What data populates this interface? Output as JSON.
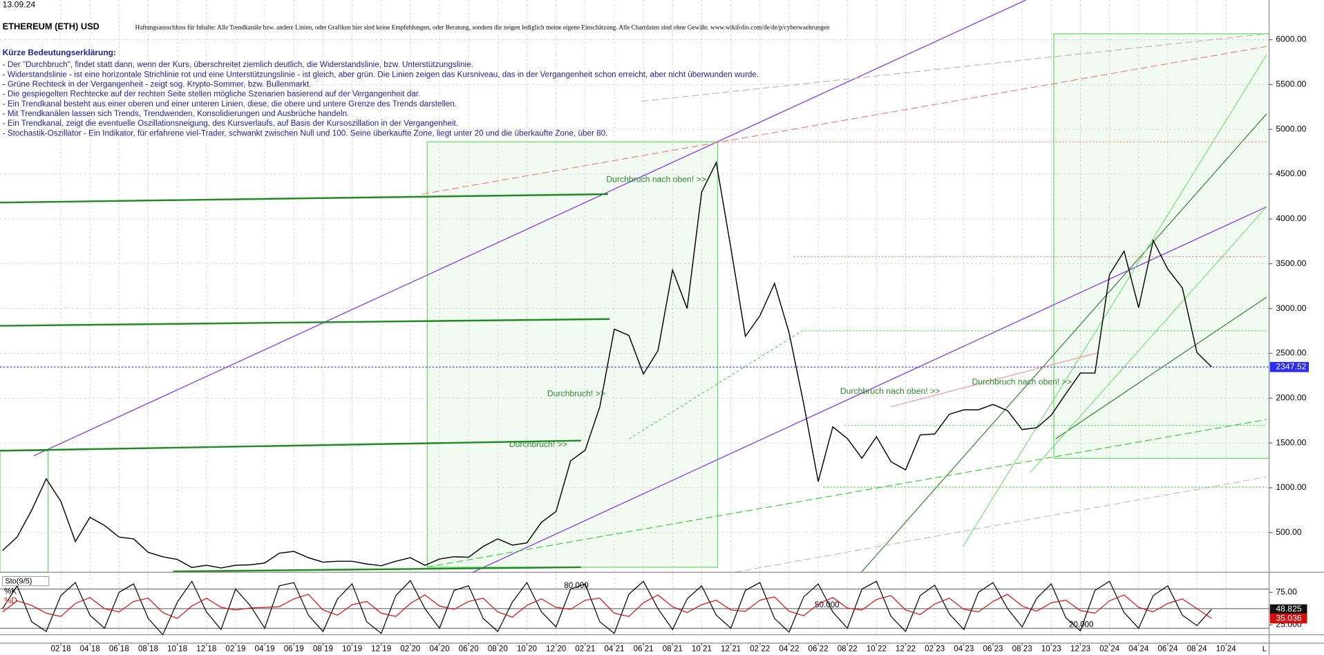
{
  "date": "13.09.24",
  "disclaimer": "Haftungsausschluss für Inhalte: Alle Trendkanäle bzw. andere Linien, oder Grafiken hier sind keine Empfehlungen, oder Beratung, sondern die zeigen lediglich meine eigene Einschätzung. Alle Chartdaten sind ohne Gewähr.  www.wikifolio.com/de/de/p/cyberwaehrungen",
  "notes_title": "Kürze Bedeutungserklärung:",
  "notes": [
    "- Der \"Durchbruch\", findet statt dann, wenn der Kurs, überschreitet ziemlich deutlich, die Widerstandslinie, bzw. Unterstützungslinie.",
    "- Widerstandslinie - ist eine horizontale Strichlinie rot und eine Unterstützungslinie - ist gleich, aber grün. Die Linien zeigen das Kursniveau, das in der Vergangenheit schon erreicht, aber nicht überwunden wurde.",
    "- Grüne Rechteck in der Vergangenheit - zeigt sog. Krypto-Sommer, bzw. Bullenmarkt.",
    "- Die gespiegelten Rechtecke auf der rechten Seite stellen mögliche Szenarien basierend auf der Vergangenheit dar.",
    "- Ein Trendkanal besteht aus einer oberen und einer unteren Linien, diese, die obere und untere Grenze des Trends darstellen.",
    "- Mit Trendkanälen lassen sich Trends, Trendwenden, Konsolidierungen und Ausbrüche handeln.",
    "- Ein Trendkanal, zeigt die eventuelle Oszillationsneigung, des Kursverlaufs, auf Basis der Kursoszillation in der Vergangenheit.",
    "- Stochastik-Oszillator - Ein Indikator, für erfahrene viel-Trader, schwankt zwischen Null und 100. Seine überkaufte Zone, liegt unter 20 und die überkaufte Zone, über 80."
  ],
  "corner_label": "L",
  "chart_data": {
    "type": "line",
    "title": "ETHEREUM (ETH) USD",
    "indicator_label": "Sto(9/5)",
    "categories": [
      null,
      null,
      null,
      null,
      "02 18",
      null,
      "04 18",
      null,
      "06 18",
      null,
      "08 18",
      null,
      "10 18",
      null,
      "12 18",
      null,
      "02 19",
      null,
      "04 19",
      null,
      "06 19",
      null,
      "08 19",
      null,
      "10 19",
      null,
      "12 19",
      null,
      "02 20",
      null,
      "04 20",
      null,
      "06 20",
      null,
      "08 20",
      null,
      "10 20",
      null,
      "12 20",
      null,
      "02 21",
      null,
      "04 21",
      null,
      "06 21",
      null,
      "08 21",
      null,
      "10 21",
      null,
      "12 21",
      null,
      "02 22",
      null,
      "04 22",
      null,
      "06 22",
      null,
      "08 22",
      null,
      "10 22",
      null,
      "12 22",
      null,
      "02 23",
      null,
      "04 23",
      null,
      "06 23",
      null,
      "08 23",
      null,
      "10 23",
      null,
      "12 23",
      null,
      "02 24",
      null,
      "04 24",
      null,
      "06 24",
      null,
      "08 24",
      null,
      "10 24"
    ],
    "series": [
      {
        "color": "#000000",
        "values": [
          300,
          450,
          750,
          1100,
          850,
          400,
          670,
          580,
          450,
          430,
          280,
          230,
          200,
          110,
          135,
          105,
          135,
          140,
          160,
          270,
          290,
          220,
          170,
          180,
          180,
          150,
          130,
          180,
          220,
          135,
          205,
          230,
          225,
          345,
          430,
          360,
          385,
          615,
          735,
          1300,
          1420,
          1900,
          2770,
          2700,
          2270,
          2530,
          3430,
          3000,
          4300,
          4630,
          3680,
          2690,
          2920,
          3280,
          2730,
          1940,
          1070,
          1680,
          1550,
          1330,
          1570,
          1290,
          1200,
          1590,
          1600,
          1820,
          1870,
          1870,
          1930,
          1860,
          1650,
          1670,
          1810,
          2050,
          2280,
          2280,
          3380,
          3640,
          3010,
          3760,
          3440,
          3230,
          2510,
          2350,
          null
        ]
      },
      {
        "name": "%K",
        "color": "#000000",
        "axis": "y2",
        "values": [
          50,
          85,
          30,
          15,
          70,
          90,
          40,
          20,
          75,
          88,
          35,
          10,
          60,
          92,
          45,
          18,
          80,
          55,
          20,
          85,
          90,
          40,
          15,
          65,
          88,
          30,
          12,
          70,
          93,
          50,
          20,
          78,
          85,
          35,
          15,
          60,
          90,
          45,
          22,
          80,
          88,
          30,
          12,
          72,
          92,
          50,
          18,
          65,
          85,
          40,
          20,
          78,
          90,
          35,
          14,
          68,
          88,
          45,
          20,
          80,
          92,
          38,
          15,
          70,
          86,
          42,
          18,
          75,
          90,
          50,
          22,
          66,
          88,
          36,
          16,
          78,
          92,
          44,
          20,
          70,
          85,
          40,
          24,
          48.825,
          null
        ]
      },
      {
        "name": "%D",
        "color": "#d01010",
        "axis": "y2",
        "values": [
          45,
          62,
          55,
          43,
          38,
          58,
          67,
          50,
          45,
          61,
          66,
          44,
          35,
          54,
          66,
          52,
          48,
          51,
          52,
          53,
          65,
          72,
          48,
          40,
          56,
          61,
          43,
          38,
          58,
          71,
          54,
          49,
          61,
          66,
          45,
          37,
          55,
          65,
          52,
          49,
          63,
          66,
          43,
          38,
          59,
          71,
          53,
          44,
          56,
          63,
          48,
          46,
          63,
          68,
          46,
          39,
          57,
          67,
          51,
          48,
          64,
          70,
          48,
          41,
          57,
          66,
          49,
          45,
          61,
          72,
          54,
          46,
          59,
          63,
          47,
          43,
          62,
          71,
          52,
          45,
          58,
          65,
          50,
          35.036,
          null
        ]
      }
    ],
    "last_price": 2347.52,
    "ylim": [
      57,
      6443
    ],
    "yticks": [
      {
        "value": 500,
        "label": "500.00"
      },
      {
        "value": 1000,
        "label": "1000.00"
      },
      {
        "value": 1500,
        "label": "1500.00"
      },
      {
        "value": 2000,
        "label": "2000.00"
      },
      {
        "value": 2500,
        "label": "2500.00"
      },
      {
        "value": 3000,
        "label": "3000.00"
      },
      {
        "value": 3500,
        "label": "3500.00"
      },
      {
        "value": 4000,
        "label": "4000.00"
      },
      {
        "value": 4500,
        "label": "4500.00"
      },
      {
        "value": 5000,
        "label": "5000.00"
      },
      {
        "value": 5500,
        "label": "5500.00"
      },
      {
        "value": 6000,
        "label": "6000.00"
      }
    ],
    "y2lim": [
      10,
      98
    ],
    "y2ticks": [
      {
        "value": 75,
        "label": "75.00"
      },
      {
        "value": 25,
        "label": "25.000"
      }
    ],
    "y2_levels": [
      {
        "value": 80,
        "label": "80.000"
      },
      {
        "value": 50,
        "label": "50.000"
      },
      {
        "value": 20,
        "label": "20.000"
      }
    ],
    "grid": true,
    "annotations": [
      "Durchbruch nach oben! >>",
      "Durchbruch! >>",
      "Durchbruch! >>",
      "Durchbruch nach oben! >>",
      "Durchbruch nach oben! >>"
    ]
  }
}
